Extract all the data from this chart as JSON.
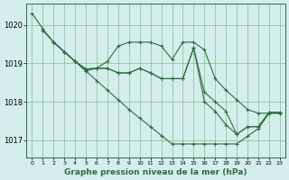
{
  "bg_color": "#d4eeee",
  "line_color": "#2d6e3e",
  "grid_color": "#88bb88",
  "ylabel_values": [
    1017,
    1018,
    1019,
    1020
  ],
  "xlim": [
    -0.5,
    23.5
  ],
  "ylim": [
    1016.55,
    1020.55
  ],
  "xlabel_label": "Graphe pression niveau de la mer (hPa)",
  "s1_x": [
    0,
    1,
    2,
    3,
    4,
    5,
    6,
    7,
    8,
    9,
    10,
    11,
    12,
    13,
    14,
    15,
    16,
    17,
    18,
    19,
    20,
    21,
    22,
    23
  ],
  "s1_y": [
    1020.3,
    1019.9,
    1019.55,
    1019.3,
    1019.05,
    1018.8,
    1018.55,
    1018.3,
    1018.05,
    1017.8,
    1017.57,
    1017.35,
    1017.12,
    1016.9,
    1016.9,
    1016.9,
    1016.9,
    1016.9,
    1016.9,
    1016.9,
    1017.1,
    1017.3,
    1017.7,
    1017.7
  ],
  "s2_x": [
    1,
    2,
    3,
    4,
    5,
    6,
    7,
    8,
    9,
    10,
    11,
    12,
    13,
    14,
    15,
    16,
    17,
    18,
    19,
    20,
    21,
    22,
    23
  ],
  "s2_y": [
    1019.85,
    1019.55,
    1019.3,
    1019.05,
    1018.8,
    1018.87,
    1019.05,
    1019.45,
    1019.55,
    1019.55,
    1019.55,
    1019.45,
    1019.1,
    1019.55,
    1019.55,
    1019.35,
    1018.6,
    1018.3,
    1018.05,
    1017.8,
    1017.7,
    1017.7,
    1017.7
  ],
  "s3_x": [
    2,
    3,
    4,
    5,
    6,
    7,
    8,
    9,
    10,
    11,
    12,
    13,
    14,
    15,
    16,
    17,
    18,
    19,
    20,
    21,
    22,
    23
  ],
  "s3_y": [
    1019.55,
    1019.3,
    1019.05,
    1018.85,
    1018.87,
    1018.87,
    1018.75,
    1018.75,
    1018.87,
    1018.75,
    1018.6,
    1018.6,
    1018.6,
    1019.4,
    1018.25,
    1018.0,
    1017.75,
    1017.15,
    1017.35,
    1017.35,
    1017.72,
    1017.72
  ],
  "s4_x": [
    2,
    3,
    4,
    5,
    6,
    7,
    8,
    9,
    10,
    11,
    12,
    13,
    14,
    15,
    16,
    17,
    18,
    19,
    20,
    21,
    22,
    23
  ],
  "s4_y": [
    1019.55,
    1019.3,
    1019.05,
    1018.85,
    1018.87,
    1018.87,
    1018.75,
    1018.75,
    1018.87,
    1018.75,
    1018.6,
    1018.6,
    1018.6,
    1019.4,
    1018.0,
    1017.75,
    1017.4,
    1017.15,
    1017.35,
    1017.35,
    1017.72,
    1017.72
  ]
}
